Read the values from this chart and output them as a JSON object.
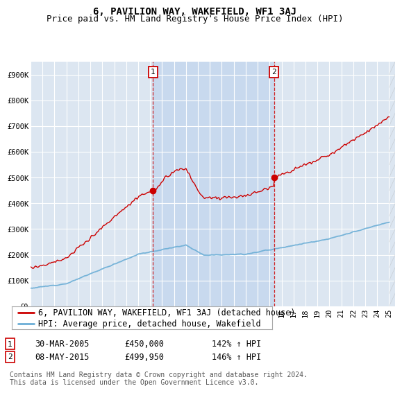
{
  "title": "6, PAVILION WAY, WAKEFIELD, WF1 3AJ",
  "subtitle": "Price paid vs. HM Land Registry's House Price Index (HPI)",
  "ylim": [
    0,
    950000
  ],
  "yticks": [
    0,
    100000,
    200000,
    300000,
    400000,
    500000,
    600000,
    700000,
    800000,
    900000
  ],
  "ytick_labels": [
    "£0",
    "£100K",
    "£200K",
    "£300K",
    "£400K",
    "£500K",
    "£600K",
    "£700K",
    "£800K",
    "£900K"
  ],
  "background_color": "#dce6f1",
  "shade_color": "#c8d9ee",
  "grid_color": "#ffffff",
  "line1_color": "#cc0000",
  "line2_color": "#6baed6",
  "legend_line1": "6, PAVILION WAY, WAKEFIELD, WF1 3AJ (detached house)",
  "legend_line2": "HPI: Average price, detached house, Wakefield",
  "annotation1_label": "1",
  "annotation1_date": "30-MAR-2005",
  "annotation1_price": "£450,000",
  "annotation1_hpi": "142% ↑ HPI",
  "annotation2_label": "2",
  "annotation2_date": "08-MAY-2015",
  "annotation2_price": "£499,950",
  "annotation2_hpi": "146% ↑ HPI",
  "footer": "Contains HM Land Registry data © Crown copyright and database right 2024.\nThis data is licensed under the Open Government Licence v3.0.",
  "title_fontsize": 10,
  "subtitle_fontsize": 9,
  "tick_fontsize": 7.5,
  "legend_fontsize": 8.5,
  "annotation_fontsize": 8.5,
  "footer_fontsize": 7,
  "sale1_year": 2005.25,
  "sale1_price": 450000,
  "sale2_year": 2015.37,
  "sale2_price": 499950,
  "xstart": 1995,
  "xend": 2025
}
